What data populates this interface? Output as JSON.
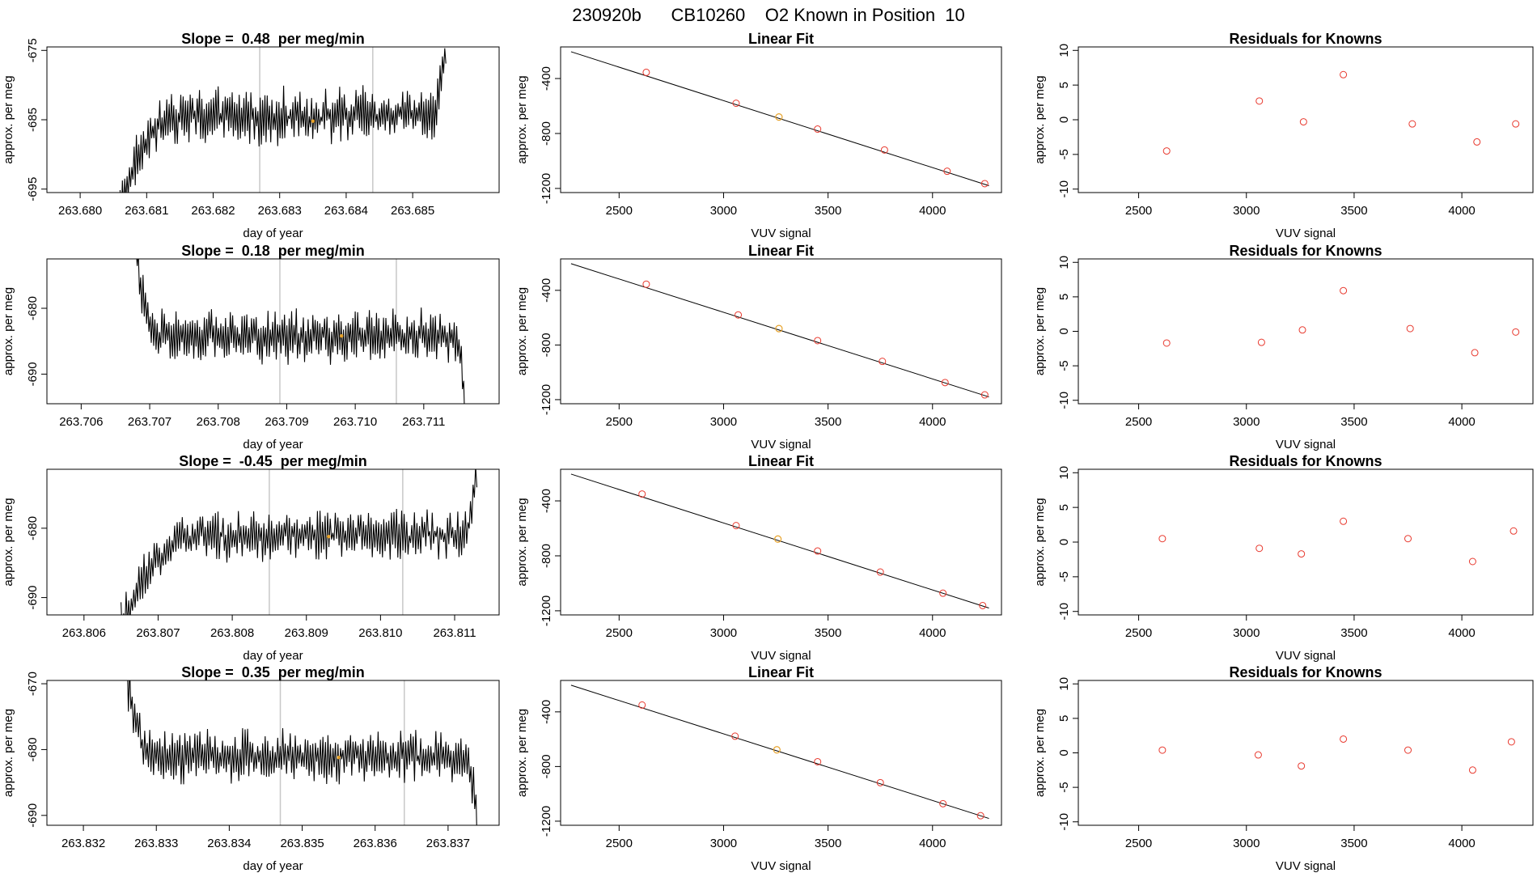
{
  "title": "230920b      CB10260    O2 Known in Position  10",
  "colors": {
    "trace": "#000000",
    "frame": "#000000",
    "known_point": "#e8392e",
    "sample_point": "#e7a22a",
    "window_line": "#c8c8c8",
    "fit_line": "#000000"
  },
  "rows": [
    {
      "trace_panel": {
        "title": "Slope =  0.48  per meg/min",
        "xlabel": "day of year",
        "ylabel": "approx. per meg",
        "xlim": [
          263.6795,
          263.6863
        ],
        "ylim": [
          -695.5,
          -674.5
        ],
        "xticks": [
          "263.680",
          "263.681",
          "263.682",
          "263.683",
          "263.684",
          "263.685"
        ],
        "yticks": [
          "-675",
          "-685",
          "-695"
        ],
        "ytick_values": [
          -675,
          -685,
          -695
        ],
        "window_lines": [
          263.6827,
          263.6844
        ],
        "marker": {
          "x": 263.6835,
          "y": -685.2
        },
        "trace": {
          "x0": 263.6806,
          "x1": 263.6855,
          "start": -697,
          "baseline": -684.5,
          "end": -674,
          "amplitude": 3.2,
          "n": 280,
          "settle": 0.18,
          "endrise": 0.05
        }
      },
      "fit_panel": {
        "title": "Linear Fit",
        "xlabel": "VUV signal",
        "ylabel": "approx. per meg",
        "xlim": [
          2220,
          4330
        ],
        "ylim": [
          -1230,
          -170
        ],
        "xticks": [
          "2500",
          "3000",
          "3500",
          "4000"
        ],
        "yticks": [
          "-400",
          "-800",
          "-1200"
        ],
        "fit_line": {
          "x": [
            2270,
            4270
          ],
          "y": [
            -205,
            -1180
          ]
        },
        "knowns": {
          "x": [
            2630,
            3060,
            3450,
            3770,
            4070,
            4250
          ],
          "y": [
            -355,
            -580,
            -768,
            -920,
            -1075,
            -1165
          ]
        },
        "sample": {
          "x": 3265,
          "y": -680
        }
      },
      "resid_panel": {
        "title": "Residuals for Knowns",
        "xlabel": "VUV signal",
        "ylabel": "approx. per meg",
        "xlim": [
          2220,
          4330
        ],
        "ylim": [
          -10.5,
          10.5
        ],
        "xticks": [
          "2500",
          "3000",
          "3500",
          "4000"
        ],
        "yticks": [
          "10",
          "5",
          "0",
          "-5",
          "-10"
        ],
        "ytick_values": [
          10,
          5,
          0,
          -5,
          -10
        ],
        "points": {
          "x": [
            2630,
            3060,
            3265,
            3450,
            3770,
            4070,
            4250
          ],
          "y": [
            -4.5,
            2.7,
            -0.3,
            6.5,
            -0.6,
            -3.2,
            -0.6
          ]
        }
      }
    },
    {
      "trace_panel": {
        "title": "Slope =  0.18  per meg/min",
        "xlabel": "day of year",
        "ylabel": "approx. per meg",
        "xlim": [
          263.7055,
          263.7121
        ],
        "ylim": [
          -694.5,
          -672.5
        ],
        "xticks": [
          "263.706",
          "263.707",
          "263.708",
          "263.709",
          "263.710",
          "263.711"
        ],
        "yticks": [
          "-680",
          "-690"
        ],
        "ytick_values": [
          -680,
          -690
        ],
        "window_lines": [
          263.7089,
          263.7106
        ],
        "marker": {
          "x": 263.7098,
          "y": -684.2
        },
        "trace": {
          "x0": 263.7068,
          "x1": 263.7116,
          "start": -672,
          "baseline": -684.3,
          "end": -696,
          "amplitude": 3.2,
          "n": 280,
          "settle": 0.07,
          "endrise": 0.03
        }
      },
      "fit_panel": {
        "title": "Linear Fit",
        "xlabel": "VUV signal",
        "ylabel": "approx. per meg",
        "xlim": [
          2220,
          4330
        ],
        "ylim": [
          -1230,
          -170
        ],
        "xticks": [
          "2500",
          "3000",
          "3500",
          "4000"
        ],
        "yticks": [
          "-400",
          "-800",
          "-1200"
        ],
        "fit_line": {
          "x": [
            2270,
            4270
          ],
          "y": [
            -205,
            -1180
          ]
        },
        "knowns": {
          "x": [
            2630,
            3070,
            3450,
            3760,
            4060,
            4250
          ],
          "y": [
            -355,
            -580,
            -768,
            -920,
            -1075,
            -1165
          ]
        },
        "sample": {
          "x": 3265,
          "y": -680
        }
      },
      "resid_panel": {
        "title": "Residuals for Knowns",
        "xlabel": "VUV signal",
        "ylabel": "approx. per meg",
        "xlim": [
          2220,
          4330
        ],
        "ylim": [
          -10.5,
          10.5
        ],
        "xticks": [
          "2500",
          "3000",
          "3500",
          "4000"
        ],
        "yticks": [
          "10",
          "5",
          "0",
          "-5",
          "-10"
        ],
        "ytick_values": [
          10,
          5,
          0,
          -5,
          -10
        ],
        "points": {
          "x": [
            2630,
            3070,
            3260,
            3450,
            3760,
            4060,
            4250
          ],
          "y": [
            -1.7,
            -1.6,
            0.2,
            5.9,
            0.4,
            -3.1,
            -0.1
          ]
        }
      }
    },
    {
      "trace_panel": {
        "title": "Slope =  -0.45  per meg/min",
        "xlabel": "day of year",
        "ylabel": "approx. per meg",
        "xlim": [
          263.8055,
          263.8116
        ],
        "ylim": [
          -692.5,
          -671.5
        ],
        "xticks": [
          "263.806",
          "263.807",
          "263.808",
          "263.809",
          "263.810",
          "263.811"
        ],
        "yticks": [
          "-680",
          "-690"
        ],
        "ytick_values": [
          -680,
          -690
        ],
        "window_lines": [
          263.8085,
          263.8103
        ],
        "marker": {
          "x": 263.8093,
          "y": -681.2
        },
        "trace": {
          "x0": 263.8065,
          "x1": 263.8113,
          "start": -694,
          "baseline": -681,
          "end": -671,
          "amplitude": 3.0,
          "n": 280,
          "settle": 0.22,
          "endrise": 0.04
        }
      },
      "fit_panel": {
        "title": "Linear Fit",
        "xlabel": "VUV signal",
        "ylabel": "approx. per meg",
        "xlim": [
          2220,
          4330
        ],
        "ylim": [
          -1230,
          -170
        ],
        "xticks": [
          "2500",
          "3000",
          "3500",
          "4000"
        ],
        "yticks": [
          "-400",
          "-800",
          "-1200"
        ],
        "fit_line": {
          "x": [
            2270,
            4270
          ],
          "y": [
            -205,
            -1180
          ]
        },
        "knowns": {
          "x": [
            2610,
            3060,
            3450,
            3750,
            4050,
            4240
          ],
          "y": [
            -350,
            -580,
            -765,
            -918,
            -1072,
            -1162
          ]
        },
        "sample": {
          "x": 3260,
          "y": -678
        }
      },
      "resid_panel": {
        "title": "Residuals for Knowns",
        "xlabel": "VUV signal",
        "ylabel": "approx. per meg",
        "xlim": [
          2220,
          4330
        ],
        "ylim": [
          -10.5,
          10.5
        ],
        "xticks": [
          "2500",
          "3000",
          "3500",
          "4000"
        ],
        "yticks": [
          "10",
          "5",
          "0",
          "-5",
          "-10"
        ],
        "ytick_values": [
          10,
          5,
          0,
          -5,
          -10
        ],
        "points": {
          "x": [
            2610,
            3060,
            3255,
            3450,
            3750,
            4050,
            4240
          ],
          "y": [
            0.5,
            -0.9,
            -1.7,
            3.0,
            0.5,
            -2.8,
            1.6
          ]
        }
      }
    },
    {
      "trace_panel": {
        "title": "Slope =  0.35  per meg/min",
        "xlabel": "day of year",
        "ylabel": "approx. per meg",
        "xlim": [
          263.8315,
          263.8377
        ],
        "ylim": [
          -691.5,
          -669.5
        ],
        "xticks": [
          "263.832",
          "263.833",
          "263.834",
          "263.835",
          "263.836",
          "263.837"
        ],
        "yticks": [
          "-670",
          "-680",
          "-690"
        ],
        "ytick_values": [
          -670,
          -680,
          -690
        ],
        "window_lines": [
          263.8347,
          263.8364
        ],
        "marker": {
          "x": 263.8355,
          "y": -681.2
        },
        "trace": {
          "x0": 263.8326,
          "x1": 263.8374,
          "start": -669,
          "baseline": -681,
          "end": -693,
          "amplitude": 3.2,
          "n": 280,
          "settle": 0.08,
          "endrise": 0.03
        }
      },
      "fit_panel": {
        "title": "Linear Fit",
        "xlabel": "VUV signal",
        "ylabel": "approx. per meg",
        "xlim": [
          2220,
          4330
        ],
        "ylim": [
          -1230,
          -170
        ],
        "xticks": [
          "2500",
          "3000",
          "3500",
          "4000"
        ],
        "yticks": [
          "-400",
          "-800",
          "-1200"
        ],
        "fit_line": {
          "x": [
            2270,
            4270
          ],
          "y": [
            -205,
            -1180
          ]
        },
        "knowns": {
          "x": [
            2610,
            3055,
            3450,
            3750,
            4050,
            4230
          ],
          "y": [
            -350,
            -578,
            -765,
            -918,
            -1072,
            -1160
          ]
        },
        "sample": {
          "x": 3255,
          "y": -678
        }
      },
      "resid_panel": {
        "title": "Residuals for Knowns",
        "xlabel": "VUV signal",
        "ylabel": "approx. per meg",
        "xlim": [
          2220,
          4330
        ],
        "ylim": [
          -10.5,
          10.5
        ],
        "xticks": [
          "2500",
          "3000",
          "3500",
          "4000"
        ],
        "yticks": [
          "10",
          "5",
          "0",
          "-5",
          "-10"
        ],
        "ytick_values": [
          10,
          5,
          0,
          -5,
          -10
        ],
        "points": {
          "x": [
            2610,
            3055,
            3255,
            3450,
            3750,
            4050,
            4230
          ],
          "y": [
            0.4,
            -0.3,
            -1.9,
            2.0,
            0.4,
            -2.5,
            1.6
          ]
        }
      }
    }
  ],
  "chart_data": [
    {
      "type": "line",
      "title": "Slope =  0.48  per meg/min",
      "xlabel": "day of year",
      "ylabel": "approx. per meg",
      "xlim": [
        263.6795,
        263.6863
      ],
      "ylim": [
        -695.5,
        -674.5
      ]
    },
    {
      "type": "scatter",
      "title": "Linear Fit",
      "xlabel": "VUV signal",
      "ylabel": "approx. per meg",
      "x": [
        2630,
        3060,
        3265,
        3450,
        3770,
        4070,
        4250
      ],
      "y": [
        -355,
        -580,
        -680,
        -768,
        -920,
        -1075,
        -1165
      ]
    },
    {
      "type": "scatter",
      "title": "Residuals for Knowns",
      "xlabel": "VUV signal",
      "ylabel": "approx. per meg",
      "x": [
        2630,
        3060,
        3265,
        3450,
        3770,
        4070,
        4250
      ],
      "y": [
        -4.5,
        2.7,
        -0.3,
        6.5,
        -0.6,
        -3.2,
        -0.6
      ]
    },
    {
      "type": "line",
      "title": "Slope =  0.18  per meg/min",
      "xlabel": "day of year",
      "ylabel": "approx. per meg",
      "xlim": [
        263.7055,
        263.7121
      ],
      "ylim": [
        -694.5,
        -672.5
      ]
    },
    {
      "type": "scatter",
      "title": "Linear Fit",
      "xlabel": "VUV signal",
      "ylabel": "approx. per meg",
      "x": [
        2630,
        3070,
        3265,
        3450,
        3760,
        4060,
        4250
      ],
      "y": [
        -355,
        -580,
        -680,
        -768,
        -920,
        -1075,
        -1165
      ]
    },
    {
      "type": "scatter",
      "title": "Residuals for Knowns",
      "xlabel": "VUV signal",
      "ylabel": "approx. per meg",
      "x": [
        2630,
        3070,
        3260,
        3450,
        3760,
        4060,
        4250
      ],
      "y": [
        -1.7,
        -1.6,
        0.2,
        5.9,
        0.4,
        -3.1,
        -0.1
      ]
    },
    {
      "type": "line",
      "title": "Slope =  -0.45  per meg/min",
      "xlabel": "day of year",
      "ylabel": "approx. per meg",
      "xlim": [
        263.8055,
        263.8116
      ],
      "ylim": [
        -692.5,
        -671.5
      ]
    },
    {
      "type": "scatter",
      "title": "Linear Fit",
      "xlabel": "VUV signal",
      "ylabel": "approx. per meg",
      "x": [
        2610,
        3060,
        3260,
        3450,
        3750,
        4050,
        4240
      ],
      "y": [
        -350,
        -580,
        -678,
        -765,
        -918,
        -1072,
        -1162
      ]
    },
    {
      "type": "scatter",
      "title": "Residuals for Knowns",
      "xlabel": "VUV signal",
      "ylabel": "approx. per meg",
      "x": [
        2610,
        3060,
        3255,
        3450,
        3750,
        4050,
        4240
      ],
      "y": [
        0.5,
        -0.9,
        -1.7,
        3.0,
        0.5,
        -2.8,
        1.6
      ]
    },
    {
      "type": "line",
      "title": "Slope =  0.35  per meg/min",
      "xlabel": "day of year",
      "ylabel": "approx. per meg",
      "xlim": [
        263.8315,
        263.8377
      ],
      "ylim": [
        -691.5,
        -669.5
      ]
    },
    {
      "type": "scatter",
      "title": "Linear Fit",
      "xlabel": "VUV signal",
      "ylabel": "approx. per meg",
      "x": [
        2610,
        3055,
        3255,
        3450,
        3750,
        4050,
        4230
      ],
      "y": [
        -350,
        -578,
        -678,
        -765,
        -918,
        -1072,
        -1160
      ]
    },
    {
      "type": "scatter",
      "title": "Residuals for Knowns",
      "xlabel": "VUV signal",
      "ylabel": "approx. per meg",
      "x": [
        2610,
        3055,
        3255,
        3450,
        3750,
        4050,
        4230
      ],
      "y": [
        0.4,
        -0.3,
        -1.9,
        2.0,
        0.4,
        -2.5,
        1.6
      ]
    }
  ]
}
